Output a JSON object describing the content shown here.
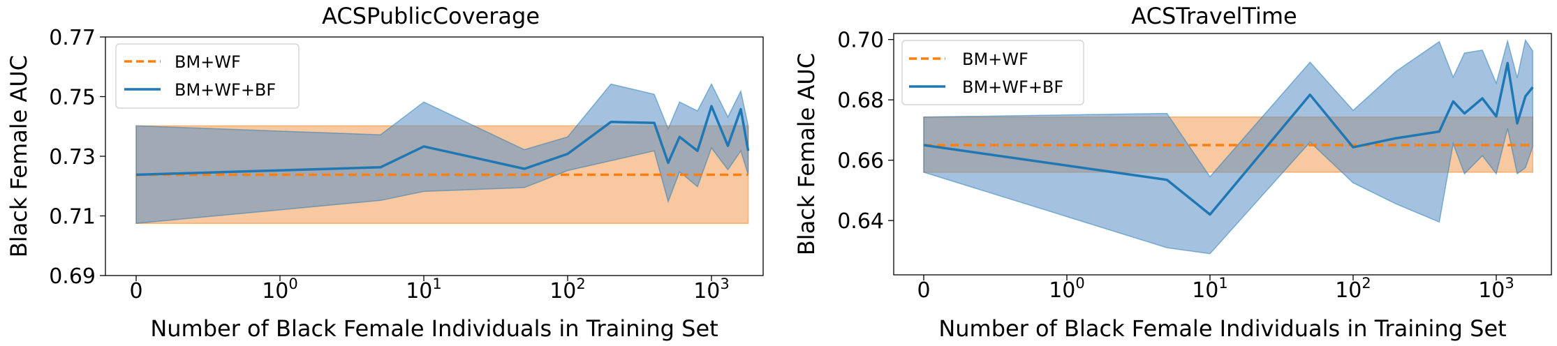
{
  "chart_data": [
    {
      "type": "line",
      "title": "ACSPublicCoverage",
      "xlabel": "Number of Black Female Individuals in Training Set",
      "ylabel": "Black Female AUC",
      "xscale": "symlog",
      "xticks": [
        {
          "value": 0,
          "label": "0"
        },
        {
          "value": 1,
          "label": "10",
          "exp": "0"
        },
        {
          "value": 10,
          "label": "10",
          "exp": "1"
        },
        {
          "value": 100,
          "label": "10",
          "exp": "2"
        },
        {
          "value": 1000,
          "label": "10",
          "exp": "3"
        }
      ],
      "yticks": [
        {
          "value": 0.69,
          "label": "0.69"
        },
        {
          "value": 0.71,
          "label": "0.71"
        },
        {
          "value": 0.73,
          "label": "0.73"
        },
        {
          "value": 0.75,
          "label": "0.75"
        },
        {
          "value": 0.77,
          "label": "0.77"
        }
      ],
      "ylim": [
        0.69,
        0.77
      ],
      "legend_position": "upper-left",
      "series": [
        {
          "name": "BM+WF",
          "color": "#ff7f0e",
          "style": "dashed",
          "x": [
            0,
            1800
          ],
          "y": [
            0.7238,
            0.7238
          ],
          "lower": [
            0.7075,
            0.7075
          ],
          "upper": [
            0.7402,
            0.7402
          ]
        },
        {
          "name": "BM+WF+BF",
          "color": "#1f77b4",
          "style": "solid",
          "x": [
            0,
            5,
            10,
            50,
            100,
            200,
            400,
            500,
            600,
            800,
            1000,
            1300,
            1600,
            1800
          ],
          "y": [
            0.7238,
            0.7263,
            0.7333,
            0.7258,
            0.7308,
            0.7415,
            0.7412,
            0.7278,
            0.7365,
            0.7318,
            0.7468,
            0.7335,
            0.7458,
            0.7318
          ],
          "lower": [
            0.7075,
            0.7152,
            0.7182,
            0.7195,
            0.7252,
            0.7285,
            0.7318,
            0.7148,
            0.7248,
            0.7198,
            0.7328,
            0.7255,
            0.7318,
            0.7238
          ],
          "upper": [
            0.7402,
            0.7372,
            0.7482,
            0.7322,
            0.7365,
            0.7542,
            0.7508,
            0.7392,
            0.7482,
            0.7452,
            0.7542,
            0.7432,
            0.7518,
            0.7402
          ]
        }
      ]
    },
    {
      "type": "line",
      "title": "ACSTravelTime",
      "xlabel": "Number of Black Female Individuals in Training Set",
      "ylabel": "Black Female AUC",
      "xscale": "symlog",
      "xticks": [
        {
          "value": 0,
          "label": "0"
        },
        {
          "value": 1,
          "label": "10",
          "exp": "0"
        },
        {
          "value": 10,
          "label": "10",
          "exp": "1"
        },
        {
          "value": 100,
          "label": "10",
          "exp": "2"
        },
        {
          "value": 1000,
          "label": "10",
          "exp": "3"
        }
      ],
      "yticks": [
        {
          "value": 0.64,
          "label": "0.64"
        },
        {
          "value": 0.66,
          "label": "0.66"
        },
        {
          "value": 0.68,
          "label": "0.68"
        },
        {
          "value": 0.7,
          "label": "0.70"
        }
      ],
      "ylim": [
        0.622,
        0.702
      ],
      "legend_position": "upper-left",
      "series": [
        {
          "name": "BM+WF",
          "color": "#ff7f0e",
          "style": "dashed",
          "x": [
            0,
            1800
          ],
          "y": [
            0.665,
            0.665
          ],
          "lower": [
            0.656,
            0.656
          ],
          "upper": [
            0.6743,
            0.6743
          ]
        },
        {
          "name": "BM+WF+BF",
          "color": "#1f77b4",
          "style": "solid",
          "x": [
            0,
            5,
            10,
            50,
            100,
            200,
            400,
            500,
            600,
            800,
            1000,
            1200,
            1400,
            1600,
            1800
          ],
          "y": [
            0.665,
            0.6535,
            0.642,
            0.6817,
            0.6643,
            0.6673,
            0.6695,
            0.6795,
            0.6755,
            0.6805,
            0.6745,
            0.6922,
            0.6722,
            0.6812,
            0.6842
          ],
          "lower": [
            0.656,
            0.631,
            0.629,
            0.666,
            0.6525,
            0.6455,
            0.6395,
            0.6655,
            0.6555,
            0.6615,
            0.6555,
            0.6705,
            0.6555,
            0.6575,
            0.6645
          ],
          "upper": [
            0.6743,
            0.6755,
            0.6545,
            0.6925,
            0.6765,
            0.6895,
            0.6993,
            0.6875,
            0.6955,
            0.6965,
            0.6855,
            0.6995,
            0.6873,
            0.6998,
            0.6962
          ]
        }
      ]
    }
  ]
}
